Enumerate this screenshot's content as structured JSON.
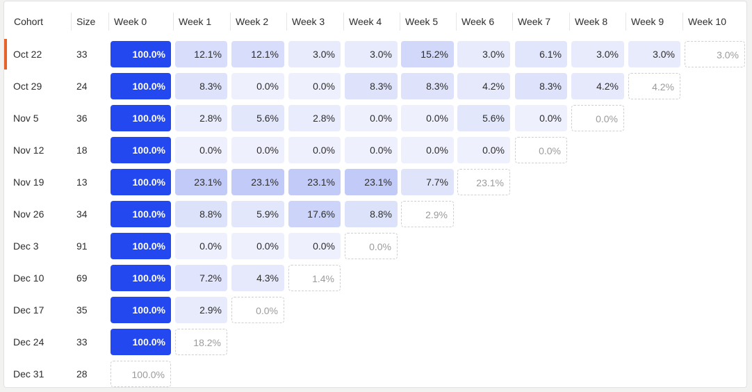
{
  "table": {
    "headers": [
      "Cohort",
      "Size",
      "Week 0",
      "Week 1",
      "Week 2",
      "Week 3",
      "Week 4",
      "Week 5",
      "Week 6",
      "Week 7",
      "Week 8",
      "Week 9",
      "Week 10"
    ],
    "selected_cohort_index": 0,
    "colors": {
      "week0": "#2448f0",
      "accent_selected": "#e5622a",
      "heat_low": "#eef0fd",
      "heat_high": "#2448f0"
    },
    "rows": [
      {
        "cohort": "Oct 22",
        "size": "33",
        "values": [
          "100.0%",
          "12.1%",
          "12.1%",
          "3.0%",
          "3.0%",
          "15.2%",
          "3.0%",
          "6.1%",
          "3.0%",
          "3.0%",
          "3.0%"
        ],
        "nums": [
          100,
          12.1,
          12.1,
          3.0,
          3.0,
          15.2,
          3.0,
          6.1,
          3.0,
          3.0,
          3.0
        ]
      },
      {
        "cohort": "Oct 29",
        "size": "24",
        "values": [
          "100.0%",
          "8.3%",
          "0.0%",
          "0.0%",
          "8.3%",
          "8.3%",
          "4.2%",
          "8.3%",
          "4.2%",
          "4.2%"
        ],
        "nums": [
          100,
          8.3,
          0.0,
          0.0,
          8.3,
          8.3,
          4.2,
          8.3,
          4.2,
          4.2
        ]
      },
      {
        "cohort": "Nov 5",
        "size": "36",
        "values": [
          "100.0%",
          "2.8%",
          "5.6%",
          "2.8%",
          "0.0%",
          "0.0%",
          "5.6%",
          "0.0%",
          "0.0%"
        ],
        "nums": [
          100,
          2.8,
          5.6,
          2.8,
          0.0,
          0.0,
          5.6,
          0.0,
          0.0
        ]
      },
      {
        "cohort": "Nov 12",
        "size": "18",
        "values": [
          "100.0%",
          "0.0%",
          "0.0%",
          "0.0%",
          "0.0%",
          "0.0%",
          "0.0%",
          "0.0%"
        ],
        "nums": [
          100,
          0.0,
          0.0,
          0.0,
          0.0,
          0.0,
          0.0,
          0.0
        ]
      },
      {
        "cohort": "Nov 19",
        "size": "13",
        "values": [
          "100.0%",
          "23.1%",
          "23.1%",
          "23.1%",
          "23.1%",
          "7.7%",
          "23.1%"
        ],
        "nums": [
          100,
          23.1,
          23.1,
          23.1,
          23.1,
          7.7,
          23.1
        ]
      },
      {
        "cohort": "Nov 26",
        "size": "34",
        "values": [
          "100.0%",
          "8.8%",
          "5.9%",
          "17.6%",
          "8.8%",
          "2.9%"
        ],
        "nums": [
          100,
          8.8,
          5.9,
          17.6,
          8.8,
          2.9
        ]
      },
      {
        "cohort": "Dec 3",
        "size": "91",
        "values": [
          "100.0%",
          "0.0%",
          "0.0%",
          "0.0%",
          "0.0%"
        ],
        "nums": [
          100,
          0.0,
          0.0,
          0.0,
          0.0
        ]
      },
      {
        "cohort": "Dec 10",
        "size": "69",
        "values": [
          "100.0%",
          "7.2%",
          "4.3%",
          "1.4%"
        ],
        "nums": [
          100,
          7.2,
          4.3,
          1.4
        ]
      },
      {
        "cohort": "Dec 17",
        "size": "35",
        "values": [
          "100.0%",
          "2.9%",
          "0.0%"
        ],
        "nums": [
          100,
          2.9,
          0.0
        ]
      },
      {
        "cohort": "Dec 24",
        "size": "33",
        "values": [
          "100.0%",
          "18.2%"
        ],
        "nums": [
          100,
          18.2
        ]
      },
      {
        "cohort": "Dec 31",
        "size": "28",
        "values": [
          "100.0%"
        ],
        "nums": [
          100
        ]
      }
    ]
  }
}
